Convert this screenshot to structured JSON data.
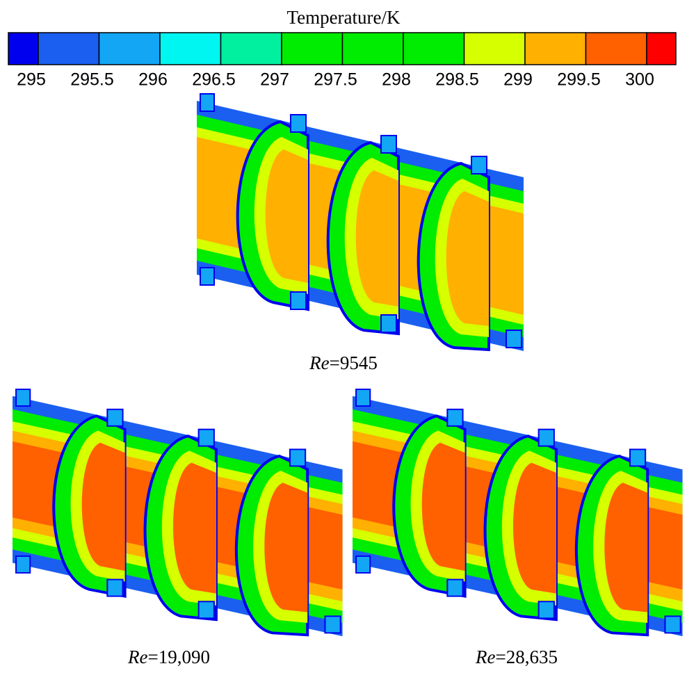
{
  "colorbar": {
    "title": "Temperature/K",
    "ticks": [
      295,
      295.5,
      296,
      296.5,
      297,
      297.5,
      298,
      298.5,
      299,
      299.5,
      300
    ],
    "colors": [
      "#0000ee",
      "#1a5ff0",
      "#12a6f5",
      "#00f6f0",
      "#00f0a0",
      "#00ec00",
      "#00ec00",
      "#00ec00",
      "#d6ff00",
      "#ffb000",
      "#ff6000",
      "#ff0000"
    ]
  },
  "panels": [
    {
      "label": {
        "italic": "Re",
        "text": "=9545"
      }
    },
    {
      "label": {
        "italic": "Re",
        "text": "=19,090"
      }
    },
    {
      "label": {
        "italic": "Re",
        "text": "=28,635"
      }
    }
  ]
}
